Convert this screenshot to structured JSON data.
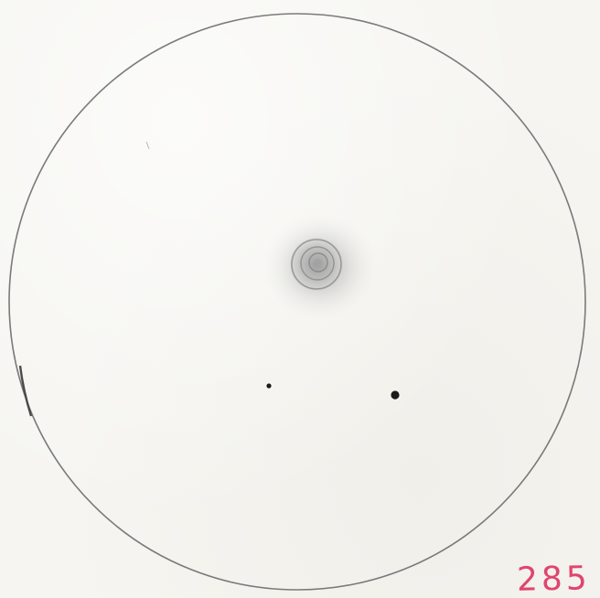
{
  "drawing": {
    "field_of_view": "circle",
    "object": "nebula",
    "stars": 2,
    "pencil_color": "#7a7a7a",
    "star_color": "#1a1a1a"
  },
  "page_label": {
    "text": "285",
    "color": "#e0456e"
  }
}
